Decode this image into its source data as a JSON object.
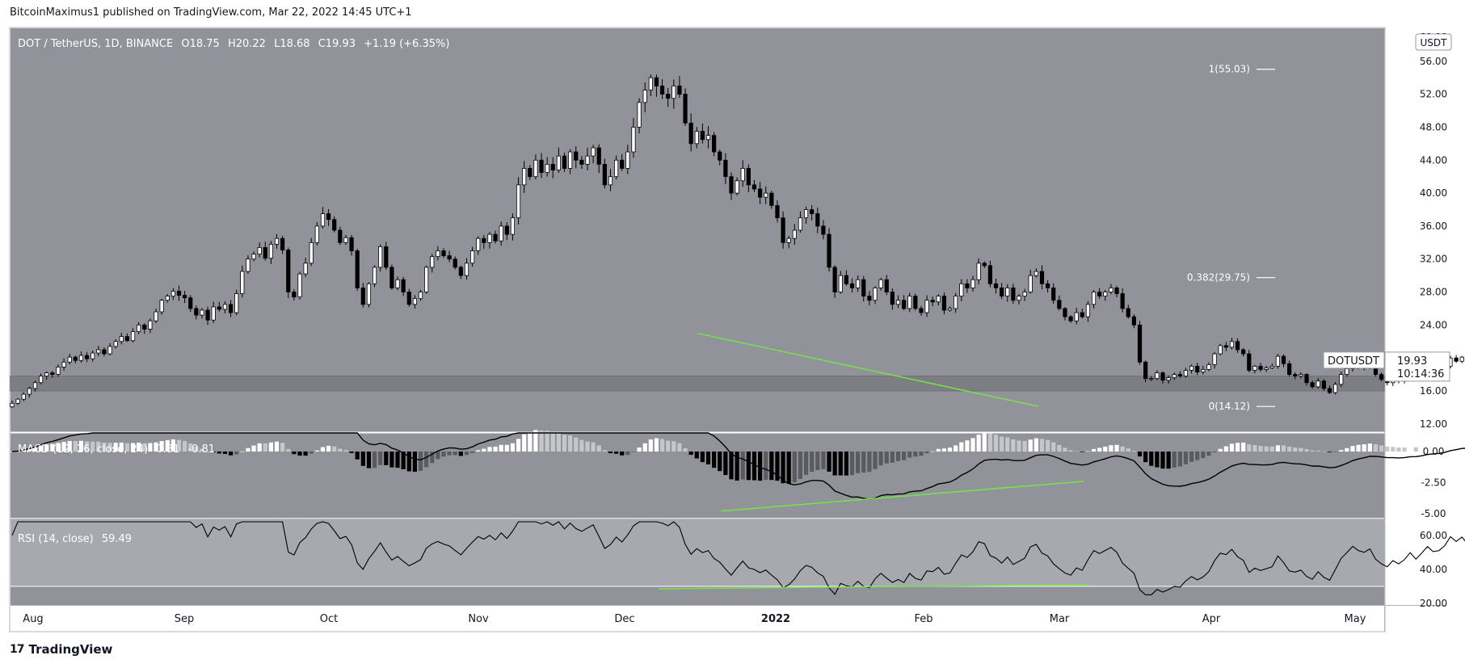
{
  "header": {
    "publisher_line": "BitcoinMaximus1 published on TradingView.com, Mar 22, 2022 14:45 UTC+1"
  },
  "footer": {
    "brand": "TradingView",
    "logo_glyph": "17"
  },
  "chart_data": {
    "type": "candlestick",
    "symbol_line": "DOT / TetherUS, 1D, BINANCE",
    "ohlc_readout": {
      "o_label": "O",
      "o": "18.75",
      "h_label": "H",
      "h": "20.22",
      "l_label": "L",
      "l": "18.68",
      "c_label": "C",
      "c": "19.93",
      "change": "+1.19 (+6.35%)"
    },
    "currency_badge": "USDT",
    "price_axis": {
      "ticks": [
        "56.00",
        "52.00",
        "48.00",
        "44.00",
        "40.00",
        "36.00",
        "32.00",
        "28.00",
        "24.00",
        "20.00",
        "16.00",
        "12.00"
      ],
      "tick_values": [
        56,
        52,
        48,
        44,
        40,
        36,
        32,
        28,
        24,
        20,
        16,
        12
      ],
      "top_partial": "60.00",
      "ylim": [
        11,
        60
      ]
    },
    "time_axis": [
      "Aug",
      "Sep",
      "Oct",
      "Nov",
      "Dec",
      "2022",
      "Feb",
      "Mar",
      "Apr",
      "May"
    ],
    "last_price": {
      "symbol": "DOTUSDT",
      "value": "19.93",
      "countdown": "10:14:36"
    },
    "fib_levels": [
      {
        "label": "1(55.03)",
        "value": 55.03
      },
      {
        "label": "0.382(29.75)",
        "value": 29.75
      },
      {
        "label": "0(14.12)",
        "value": 14.12
      }
    ],
    "support_zone": [
      16.0,
      17.8
    ],
    "closes": [
      14.5,
      15.0,
      15.6,
      16.3,
      17.0,
      17.8,
      18.2,
      18.0,
      18.9,
      19.5,
      20.1,
      19.7,
      20.3,
      19.9,
      20.6,
      21.0,
      20.5,
      21.4,
      22.0,
      22.6,
      22.1,
      23.2,
      24.0,
      23.5,
      24.5,
      25.6,
      27.0,
      27.5,
      28.1,
      27.6,
      27.3,
      26.0,
      25.2,
      25.8,
      24.6,
      26.2,
      25.9,
      26.5,
      25.5,
      27.8,
      30.5,
      32.0,
      32.6,
      33.4,
      32.1,
      33.8,
      34.5,
      33.1,
      28.0,
      27.4,
      30.2,
      31.5,
      34.0,
      36.0,
      37.5,
      36.8,
      35.5,
      34.0,
      34.6,
      33.0,
      28.5,
      26.5,
      29.0,
      31.0,
      33.5,
      31.0,
      28.5,
      29.5,
      28.0,
      26.5,
      27.2,
      28.0,
      31.0,
      32.3,
      33.0,
      32.4,
      32.0,
      31.0,
      30.0,
      31.5,
      33.0,
      34.5,
      34.0,
      35.0,
      34.2,
      36.0,
      35.0,
      37.0,
      41.0,
      43.0,
      42.0,
      44.0,
      42.5,
      43.5,
      42.8,
      44.5,
      43.0,
      45.0,
      44.0,
      43.5,
      44.5,
      45.5,
      43.5,
      41.0,
      42.0,
      44.0,
      43.0,
      45.0,
      48.0,
      51.0,
      52.5,
      54.0,
      53.0,
      52.0,
      51.5,
      53.0,
      52.0,
      48.5,
      46.0,
      47.5,
      46.5,
      47.0,
      45.0,
      44.0,
      42.0,
      40.0,
      41.5,
      43.0,
      41.0,
      40.5,
      39.5,
      40.0,
      38.5,
      37.0,
      34.0,
      34.5,
      35.5,
      37.0,
      38.0,
      37.5,
      36.0,
      35.0,
      31.0,
      28.0,
      30.0,
      29.0,
      28.5,
      29.5,
      27.5,
      27.0,
      28.5,
      29.5,
      28.0,
      26.5,
      27.0,
      26.0,
      27.5,
      26.0,
      25.5,
      27.0,
      26.8,
      27.5,
      25.8,
      26.0,
      27.5,
      29.0,
      28.5,
      29.5,
      31.5,
      31.2,
      29.0,
      28.5,
      27.5,
      28.5,
      27.0,
      27.5,
      28.0,
      30.0,
      30.5,
      29.0,
      28.5,
      27.0,
      26.0,
      25.0,
      24.5,
      25.5,
      25.0,
      26.5,
      28.0,
      27.5,
      28.0,
      28.5,
      27.8,
      26.0,
      25.0,
      24.0,
      19.5,
      17.5,
      17.5,
      18.2,
      17.3,
      17.6,
      18.0,
      17.8,
      18.5,
      19.0,
      18.3,
      18.6,
      19.2,
      20.5,
      21.5,
      21.3,
      22.0,
      21.0,
      20.5,
      18.5,
      19.0,
      18.6,
      18.8,
      19.0,
      20.2,
      19.3,
      18.0,
      17.8,
      18.0,
      17.0,
      16.5,
      17.2,
      16.3,
      15.8,
      16.8,
      18.0,
      18.7,
      19.5,
      19.0,
      18.8,
      19.2,
      18.0,
      17.4,
      17.0,
      17.6,
      17.2,
      17.6,
      18.3,
      17.6,
      18.2,
      18.9,
      18.4,
      18.5,
      19.0,
      20.0,
      19.6,
      20.1,
      19.5,
      18.75,
      19.93
    ],
    "macd": {
      "label": "MACD (12, 26, close, 24)",
      "value_a": "0.81",
      "value_b": "-0.81",
      "ticks": [
        "0.00",
        "-2.50",
        "-5.00"
      ],
      "tick_values": [
        0,
        -2.5,
        -5
      ],
      "ylim": [
        -5.6,
        1.5
      ]
    },
    "rsi": {
      "label": "RSI (14, close)",
      "value": "59.49",
      "ticks": [
        "60.00",
        "40.00",
        "20.00"
      ],
      "tick_values": [
        60,
        40,
        20
      ],
      "ylim": [
        19,
        68
      ],
      "band": [
        30,
        70
      ]
    },
    "colors": {
      "chart_bg": "#92939a",
      "up_candle": "#ffffff",
      "down_candle": "#000000",
      "support_zone": "#7d7e84",
      "trendline": "#76e24a",
      "axis_bg": "#ffffff",
      "rsi_band": "#a8a9ae",
      "hist_strong_pos": "#ffffff",
      "hist_weak_pos": "#c6c7cb",
      "hist_strong_neg": "#000000",
      "hist_weak_neg": "#5a5b61"
    }
  }
}
